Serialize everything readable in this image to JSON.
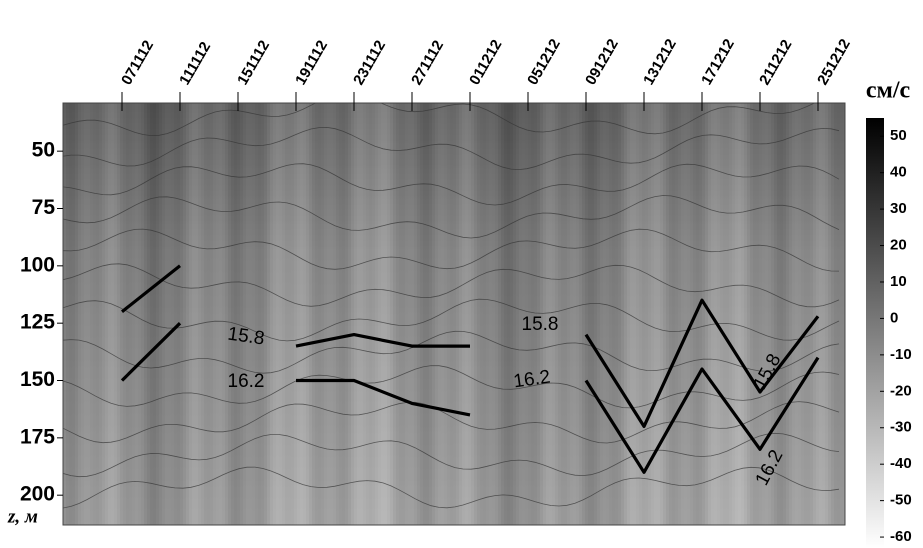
{
  "chart_data": {
    "type": "contour",
    "categories": [
      "071112",
      "111112",
      "151112",
      "191112",
      "231112",
      "271112",
      "011212",
      "051212",
      "091212",
      "131212",
      "171212",
      "211212",
      "251212"
    ],
    "y_label": "z, м",
    "ylim": [
      29,
      213
    ],
    "yticks": [
      50,
      75,
      100,
      125,
      150,
      175,
      200
    ],
    "y_inverted": true,
    "series": [
      {
        "name": "15.8",
        "color": "#000000",
        "values": [
          120,
          100,
          null,
          135,
          130,
          135,
          135,
          null,
          130,
          170,
          115,
          155,
          122
        ]
      },
      {
        "name": "16.2",
        "color": "#000000",
        "values": [
          150,
          125,
          null,
          150,
          150,
          160,
          165,
          null,
          150,
          190,
          145,
          180,
          140
        ]
      }
    ],
    "colorbar": {
      "label": "см/с",
      "lim": [
        -63,
        55
      ],
      "ticks": [
        50,
        40,
        30,
        20,
        10,
        0,
        -10,
        -20,
        -30,
        -40,
        -50,
        -60
      ]
    }
  }
}
